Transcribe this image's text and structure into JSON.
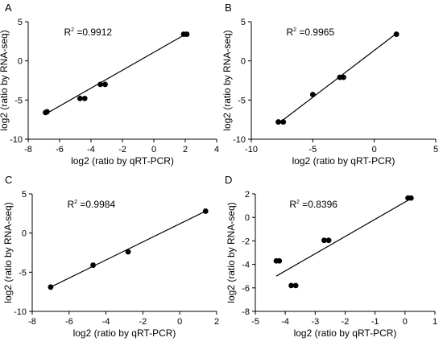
{
  "chart_data": [
    {
      "panel": "A",
      "type": "scatter",
      "xlabel": "log2 (ratio by qRT-PCR)",
      "ylabel": "log2 (ratio by RNA-seq)",
      "annotation": {
        "prefix": "R",
        "sup": "2",
        "value": " =0.9912"
      },
      "xlim": [
        -8,
        4
      ],
      "ylim": [
        -10,
        5
      ],
      "xticks": [
        -8,
        -6,
        -4,
        -2,
        0,
        2,
        4
      ],
      "yticks": [
        -10,
        -5,
        0,
        5
      ],
      "points": [
        [
          -6.9,
          -6.6
        ],
        [
          -6.8,
          -6.5
        ],
        [
          -4.7,
          -4.8
        ],
        [
          -4.4,
          -4.8
        ],
        [
          -3.4,
          -3.0
        ],
        [
          -3.1,
          -3.0
        ],
        [
          1.9,
          3.4
        ],
        [
          2.1,
          3.4
        ]
      ],
      "fit_line": [
        [
          -6.9,
          -6.8
        ],
        [
          2.1,
          3.5
        ]
      ],
      "grid": false
    },
    {
      "panel": "B",
      "type": "scatter",
      "xlabel": "log2 (ratio by qRT-PCR)",
      "ylabel": "log2 (ratio by RNA-seq)",
      "annotation": {
        "prefix": "R",
        "sup": "2",
        "value": " =0.9965"
      },
      "xlim": [
        -10,
        5
      ],
      "ylim": [
        -10,
        5
      ],
      "xticks": [
        -10,
        -5,
        0,
        5
      ],
      "yticks": [
        -10,
        -5,
        0,
        5
      ],
      "points": [
        [
          -7.8,
          -7.8
        ],
        [
          -7.4,
          -7.8
        ],
        [
          -5.0,
          -4.3
        ],
        [
          -2.8,
          -2.1
        ],
        [
          -2.5,
          -2.1
        ],
        [
          1.8,
          3.4
        ]
      ],
      "fit_line": [
        [
          -7.8,
          -8.0
        ],
        [
          1.8,
          3.5
        ]
      ],
      "grid": false
    },
    {
      "panel": "C",
      "type": "scatter",
      "xlabel": "log2 (ratio by qRT-PCR)",
      "ylabel": "log2 (ratio by RNA-seq)",
      "annotation": {
        "prefix": "R",
        "sup": "2",
        "value": " =0.9984"
      },
      "xlim": [
        -8,
        2
      ],
      "ylim": [
        -10,
        5
      ],
      "xticks": [
        -8,
        -6,
        -4,
        -2,
        0,
        2
      ],
      "yticks": [
        -10,
        -5,
        0,
        5
      ],
      "points": [
        [
          -7.0,
          -6.9
        ],
        [
          -4.7,
          -4.1
        ],
        [
          -2.8,
          -2.4
        ],
        [
          1.4,
          2.8
        ]
      ],
      "fit_line": [
        [
          -7.0,
          -6.9
        ],
        [
          1.4,
          2.8
        ]
      ],
      "grid": false
    },
    {
      "panel": "D",
      "type": "scatter",
      "xlabel": "log2 (ratio by qRT-PCR)",
      "ylabel": "log2 (ratio by RNA-seq)",
      "annotation": {
        "prefix": "R",
        "sup": "2",
        "value": " =0.8396"
      },
      "xlim": [
        -5,
        1
      ],
      "ylim": [
        -8,
        2
      ],
      "xticks": [
        -5,
        -4,
        -3,
        -2,
        -1,
        0,
        1
      ],
      "yticks": [
        -8,
        -6,
        -4,
        -2,
        0,
        2
      ],
      "points": [
        [
          -4.3,
          -3.7
        ],
        [
          -4.2,
          -3.7
        ],
        [
          -3.8,
          -5.8
        ],
        [
          -3.65,
          -5.8
        ],
        [
          -2.7,
          -1.95
        ],
        [
          -2.55,
          -1.95
        ],
        [
          0.1,
          1.65
        ],
        [
          0.2,
          1.65
        ]
      ],
      "fit_line": [
        [
          -4.3,
          -5.0
        ],
        [
          0.2,
          1.6
        ]
      ],
      "grid": false
    }
  ]
}
